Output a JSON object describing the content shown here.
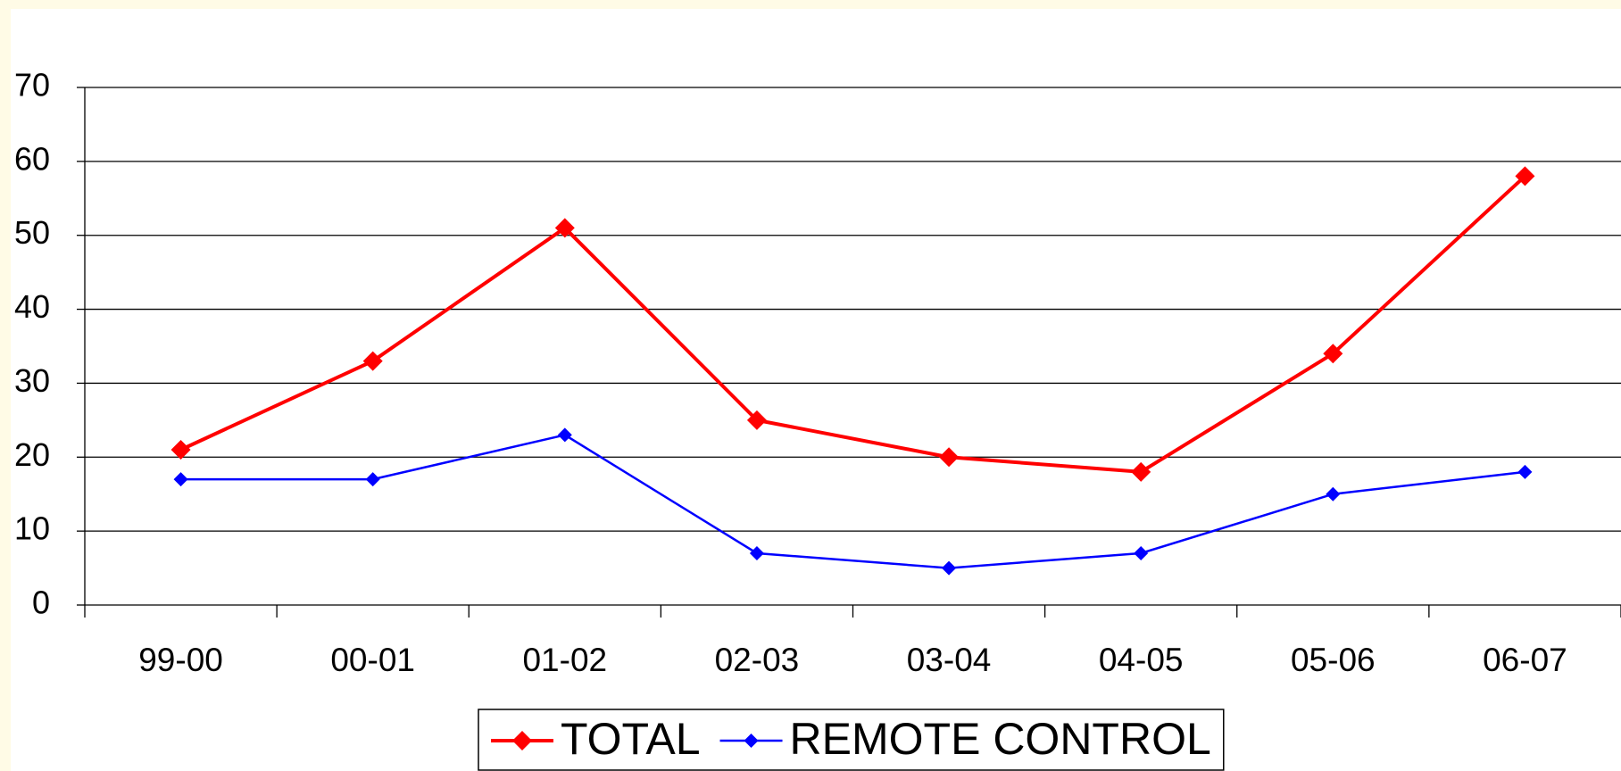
{
  "chart_data": {
    "type": "line",
    "categories": [
      "99-00",
      "00-01",
      "01-02",
      "02-03",
      "03-04",
      "04-05",
      "05-06",
      "06-07"
    ],
    "series": [
      {
        "name": "TOTAL",
        "color": "#ff0000",
        "values": [
          21,
          33,
          51,
          25,
          20,
          18,
          34,
          58
        ]
      },
      {
        "name": "REMOTE CONTROL",
        "color": "#0000ff",
        "values": [
          17,
          17,
          23,
          7,
          5,
          7,
          15,
          18
        ]
      }
    ],
    "ylim": [
      0,
      70
    ],
    "yticks": [
      0,
      10,
      20,
      30,
      40,
      50,
      60,
      70
    ],
    "grid": true,
    "legend": "bottom"
  }
}
